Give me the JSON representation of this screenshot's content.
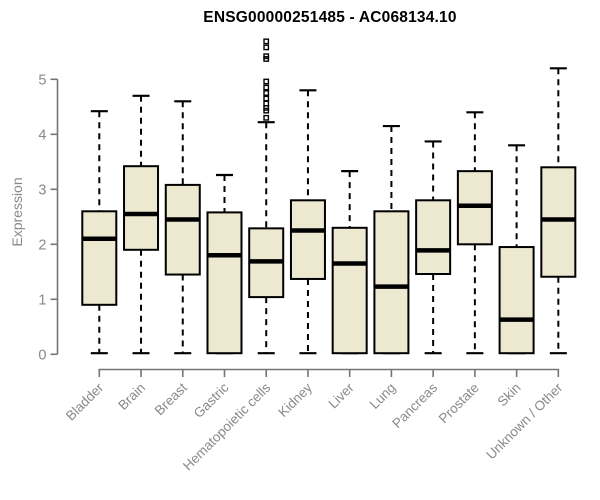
{
  "colors": {
    "background": "#ffffff",
    "box_fill": "#ede8d0",
    "box_stroke": "#000000",
    "median": "#000000",
    "whisker": "#000000",
    "outlier": "#000000",
    "axis_line": "#757575",
    "tick_label": "#898989",
    "axis_label": "#898989",
    "title": "#000000"
  },
  "chart_data": {
    "type": "boxplot",
    "title": "ENSG00000251485 - AC068134.10",
    "xlabel": "",
    "ylabel": "Expression",
    "ylim": [
      0,
      5
    ],
    "yticks": [
      0,
      1,
      2,
      3,
      4,
      5
    ],
    "grid": false,
    "legend": false,
    "categories": [
      "Bladder",
      "Brain",
      "Breast",
      "Gastric",
      "Hematopoietic cells",
      "Kidney",
      "Liver",
      "Lung",
      "Pancreas",
      "Prostate",
      "Skin",
      "Unknown / Other"
    ],
    "series": [
      {
        "name": "Bladder",
        "whisker_low": 0.02,
        "q1": 0.9,
        "median": 2.1,
        "q3": 2.6,
        "whisker_high": 4.42,
        "outliers": []
      },
      {
        "name": "Brain",
        "whisker_low": 0.02,
        "q1": 1.9,
        "median": 2.55,
        "q3": 3.42,
        "whisker_high": 4.7,
        "outliers": []
      },
      {
        "name": "Breast",
        "whisker_low": 0.02,
        "q1": 1.45,
        "median": 2.45,
        "q3": 3.08,
        "whisker_high": 4.6,
        "outliers": []
      },
      {
        "name": "Gastric",
        "whisker_low": 0.02,
        "q1": 0.02,
        "median": 1.8,
        "q3": 2.58,
        "whisker_high": 3.26,
        "outliers": []
      },
      {
        "name": "Hematopoietic cells",
        "whisker_low": 0.02,
        "q1": 1.04,
        "median": 1.69,
        "q3": 2.29,
        "whisker_high": 4.22,
        "outliers": [
          4.3,
          4.43,
          4.48,
          4.56,
          4.65,
          4.75,
          4.85,
          4.96,
          5.37,
          5.42,
          5.58,
          5.69
        ]
      },
      {
        "name": "Kidney",
        "whisker_low": 0.02,
        "q1": 1.37,
        "median": 2.25,
        "q3": 2.8,
        "whisker_high": 4.8,
        "outliers": []
      },
      {
        "name": "Liver",
        "whisker_low": 0.02,
        "q1": 0.02,
        "median": 1.65,
        "q3": 2.3,
        "whisker_high": 3.33,
        "outliers": []
      },
      {
        "name": "Lung",
        "whisker_low": 0.02,
        "q1": 0.02,
        "median": 1.23,
        "q3": 2.6,
        "whisker_high": 4.15,
        "outliers": []
      },
      {
        "name": "Pancreas",
        "whisker_low": 0.02,
        "q1": 1.46,
        "median": 1.89,
        "q3": 2.8,
        "whisker_high": 3.87,
        "outliers": []
      },
      {
        "name": "Prostate",
        "whisker_low": 0.02,
        "q1": 2.0,
        "median": 2.7,
        "q3": 3.33,
        "whisker_high": 4.4,
        "outliers": []
      },
      {
        "name": "Skin",
        "whisker_low": 0.02,
        "q1": 0.02,
        "median": 0.63,
        "q3": 1.95,
        "whisker_high": 3.8,
        "outliers": []
      },
      {
        "name": "Unknown / Other",
        "whisker_low": 0.02,
        "q1": 1.41,
        "median": 2.45,
        "q3": 3.4,
        "whisker_high": 5.2,
        "outliers": []
      }
    ]
  }
}
